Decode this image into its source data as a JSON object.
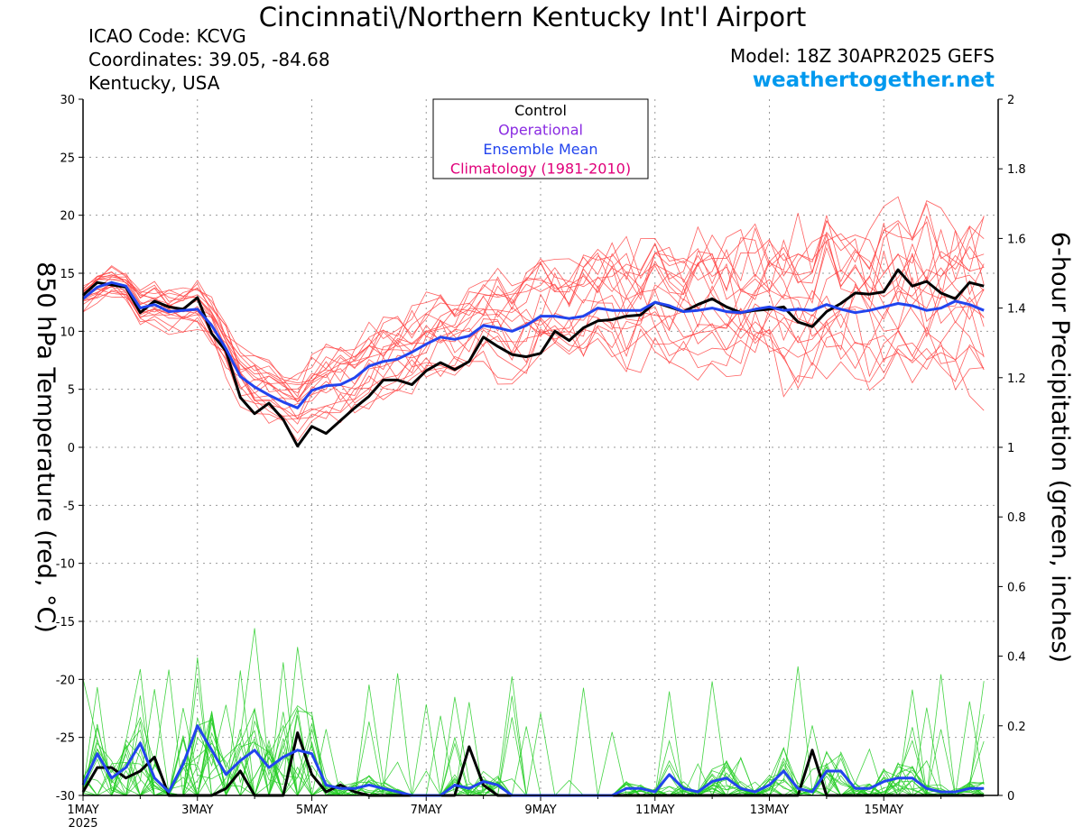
{
  "header": {
    "title": "Cincinnati\\/Northern Kentucky Int'l Airport",
    "icao": "ICAO Code: KCVG",
    "coords": "Coordinates: 39.05, -84.68",
    "region": "Kentucky, USA",
    "model": "Model: 18Z 30APR2025 GEFS",
    "brand": "weathertogether.net"
  },
  "legend": [
    {
      "label": "Control",
      "color": "#000000"
    },
    {
      "label": "Operational",
      "color": "#8a2be2"
    },
    {
      "label": "Ensemble Mean",
      "color": "#2244ee"
    },
    {
      "label": "Climatology (1981-2010)",
      "color": "#e0007a"
    }
  ],
  "colors": {
    "members_temp": "#ff4444",
    "members_precip": "#22cc22",
    "control": "#000000",
    "mean": "#2244ee"
  },
  "chart_data": {
    "type": "line",
    "ylabel_left": "850 hPa Temperature (red, °C)",
    "ylabel_right": "6-hour Precipitation (green, inches)",
    "ylim_left": [
      -30,
      30
    ],
    "ylim_right": [
      0,
      2
    ],
    "yticks_left": [
      "30",
      "25",
      "20",
      "15",
      "10",
      "5",
      "0",
      "-5",
      "-10",
      "-15",
      "-20",
      "-25",
      "-30"
    ],
    "yticks_right": [
      "2",
      "1.8",
      "1.6",
      "1.4",
      "1.2",
      "1",
      "0.8",
      "0.6",
      "0.4",
      "0.2",
      "0"
    ],
    "xticks": [
      {
        "label": "1MAY",
        "sub": "2025",
        "day": 0
      },
      {
        "label": "3MAY",
        "day": 2
      },
      {
        "label": "5MAY",
        "day": 4
      },
      {
        "label": "7MAY",
        "day": 6
      },
      {
        "label": "9MAY",
        "day": 8
      },
      {
        "label": "11MAY",
        "day": 10
      },
      {
        "label": "13MAY",
        "day": 12
      },
      {
        "label": "15MAY",
        "day": 14
      }
    ],
    "x_day_range": [
      0,
      16.0
    ],
    "time_step_days": 0.25,
    "grid": true,
    "series": [
      {
        "name": "Control",
        "axis": "left",
        "values": [
          13.1,
          14.2,
          14.0,
          13.8,
          11.6,
          12.6,
          12.1,
          11.9,
          12.9,
          9.8,
          8.3,
          4.3,
          2.9,
          3.8,
          2.4,
          0.1,
          1.8,
          1.2,
          2.3,
          3.4,
          4.4,
          5.8,
          5.8,
          5.4,
          6.6,
          7.3,
          6.7,
          7.4,
          9.5,
          8.7,
          8.0,
          7.8,
          8.1,
          10.0,
          9.2,
          10.3,
          10.9,
          11.0,
          11.3,
          11.4,
          12.5,
          12.1,
          11.7,
          12.3,
          12.8,
          12.1,
          11.6,
          11.8,
          11.9,
          12.1,
          10.8,
          10.4,
          11.7,
          12.4,
          13.3,
          13.2,
          13.4,
          15.3,
          13.9,
          14.3,
          13.3,
          12.8,
          14.2,
          13.9
        ]
      },
      {
        "name": "Ensemble Mean",
        "axis": "left",
        "values": [
          12.8,
          13.8,
          14.2,
          13.9,
          12.0,
          12.3,
          11.7,
          11.8,
          11.9,
          10.5,
          8.5,
          6.1,
          5.2,
          4.5,
          3.9,
          3.4,
          4.9,
          5.3,
          5.4,
          6.0,
          7.0,
          7.4,
          7.6,
          8.2,
          8.9,
          9.5,
          9.3,
          9.6,
          10.5,
          10.3,
          10.0,
          10.5,
          11.3,
          11.3,
          11.1,
          11.3,
          12.0,
          11.8,
          11.8,
          11.8,
          12.5,
          12.2,
          11.7,
          11.8,
          12.0,
          11.7,
          11.6,
          11.9,
          12.1,
          11.8,
          11.9,
          11.8,
          12.3,
          11.9,
          11.6,
          11.8,
          12.1,
          12.4,
          12.2,
          11.8,
          12.0,
          12.6,
          12.3,
          11.8
        ]
      },
      {
        "name": "Control",
        "axis": "right",
        "values": [
          0.01,
          0.08,
          0.08,
          0.05,
          0.07,
          0.11,
          0.0,
          0.0,
          0.0,
          0.0,
          0.02,
          0.07,
          0.0,
          0.0,
          0.0,
          0.18,
          0.06,
          0.01,
          0.03,
          0.01,
          0.0,
          0.0,
          0.0,
          0.0,
          0.0,
          0.0,
          0.0,
          0.14,
          0.03,
          0.0,
          0.0,
          0.0,
          0.0,
          0.0,
          0.0,
          0.0,
          0.0,
          0.0,
          0.0,
          0.0,
          0.0,
          0.0,
          0.0,
          0.0,
          0.0,
          0.0,
          0.0,
          0.0,
          0.0,
          0.0,
          0.0,
          0.13,
          0.0,
          0.0,
          0.0,
          0.0,
          0.0,
          0.0,
          0.0,
          0.0,
          0.0,
          0.0,
          0.0,
          0.0
        ]
      },
      {
        "name": "Ensemble Mean",
        "axis": "right",
        "values": [
          0.03,
          0.12,
          0.05,
          0.08,
          0.15,
          0.05,
          0.01,
          0.09,
          0.2,
          0.13,
          0.06,
          0.1,
          0.13,
          0.08,
          0.11,
          0.13,
          0.12,
          0.03,
          0.02,
          0.02,
          0.03,
          0.02,
          0.01,
          0.0,
          0.0,
          0.0,
          0.03,
          0.02,
          0.04,
          0.03,
          0.0,
          0.0,
          0.0,
          0.0,
          0.0,
          0.0,
          0.0,
          0.0,
          0.02,
          0.02,
          0.01,
          0.06,
          0.02,
          0.01,
          0.04,
          0.05,
          0.02,
          0.01,
          0.03,
          0.07,
          0.02,
          0.01,
          0.07,
          0.07,
          0.02,
          0.02,
          0.04,
          0.05,
          0.05,
          0.02,
          0.01,
          0.01,
          0.02,
          0.02
        ]
      }
    ],
    "members_note_count": 20
  }
}
